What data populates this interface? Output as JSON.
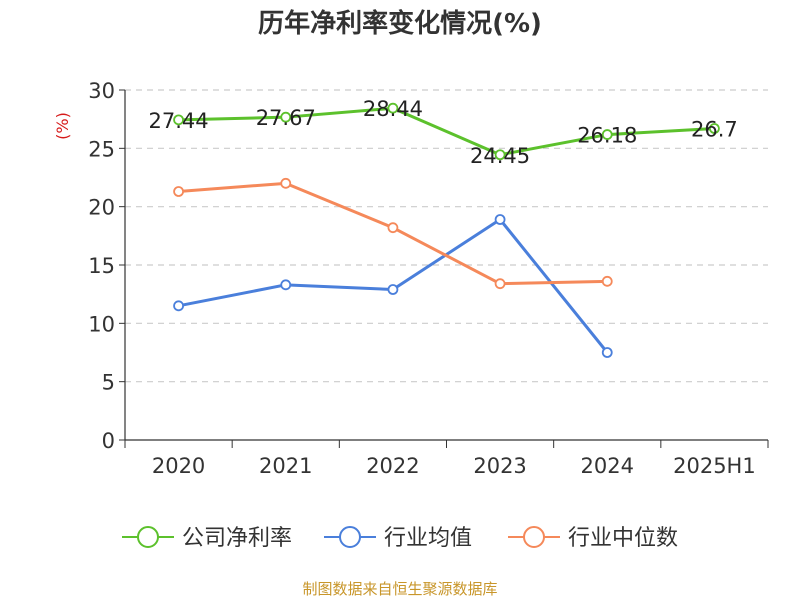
{
  "chart_data": {
    "type": "line",
    "title": "历年净利率变化情况(%)",
    "ylabel": "(%)",
    "categories": [
      "2020",
      "2021",
      "2022",
      "2023",
      "2024",
      "2025H1"
    ],
    "ylim": [
      0,
      30
    ],
    "yticks": [
      0,
      5,
      10,
      15,
      20,
      25,
      30
    ],
    "grid": true,
    "legend_position": "bottom",
    "series": [
      {
        "name": "公司净利率",
        "color": "#5cc12c",
        "values": [
          27.44,
          27.67,
          28.44,
          24.45,
          26.18,
          26.7
        ],
        "labels": [
          "27.44",
          "27.67",
          "28.44",
          "24.45",
          "26.18",
          "26.7"
        ]
      },
      {
        "name": "行业均值",
        "color": "#4a7fdb",
        "values": [
          11.5,
          13.3,
          12.9,
          18.9,
          7.5,
          null
        ],
        "labels": []
      },
      {
        "name": "行业中位数",
        "color": "#f5895a",
        "values": [
          21.3,
          22.0,
          18.2,
          13.4,
          13.6,
          null
        ],
        "labels": []
      }
    ]
  },
  "footer": {
    "source": "制图数据来自恒生聚源数据库",
    "source_color": "#c8962a"
  }
}
